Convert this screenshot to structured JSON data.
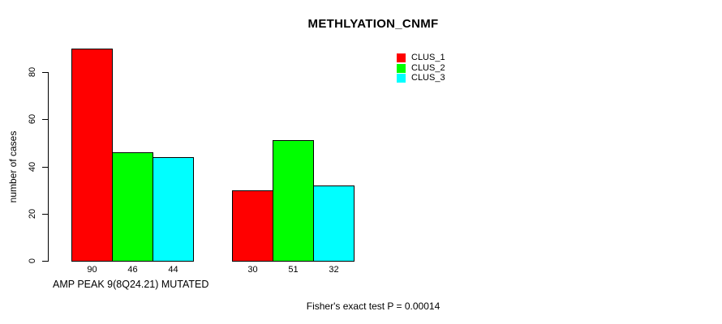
{
  "title": "METHLYATION_CNMF",
  "axes": {
    "ylabel": "number of cases",
    "xlabel": "AMP PEAK  9(8Q24.21) MUTATED"
  },
  "footer": {
    "text": "Fisher's exact test P = 0.00014"
  },
  "legend": {
    "position": "top-right",
    "items": [
      {
        "label": "CLUS_1",
        "color": "#ff0000"
      },
      {
        "label": "CLUS_2",
        "color": "#00ff00"
      },
      {
        "label": "CLUS_3",
        "color": "#00ffff"
      }
    ]
  },
  "chart_data": {
    "type": "bar",
    "title": "METHLYATION_CNMF",
    "xlabel": "AMP PEAK  9(8Q24.21) MUTATED",
    "ylabel": "number of cases",
    "categories": [
      "",
      ""
    ],
    "series": [
      {
        "name": "CLUS_1",
        "color": "#ff0000",
        "values": [
          90,
          30
        ]
      },
      {
        "name": "CLUS_2",
        "color": "#00ff00",
        "values": [
          46,
          51
        ]
      },
      {
        "name": "CLUS_3",
        "color": "#00ffff",
        "values": [
          44,
          32
        ]
      }
    ],
    "bar_value_labels": [
      [
        90,
        46,
        44
      ],
      [
        30,
        51,
        32
      ]
    ],
    "yticks": [
      0,
      20,
      40,
      60,
      80
    ],
    "ylim": [
      0,
      90
    ],
    "grid": false,
    "bar_border_color": "#000000",
    "legend_position": "top-right",
    "annotation": "Fisher's exact test P = 0.00014"
  }
}
